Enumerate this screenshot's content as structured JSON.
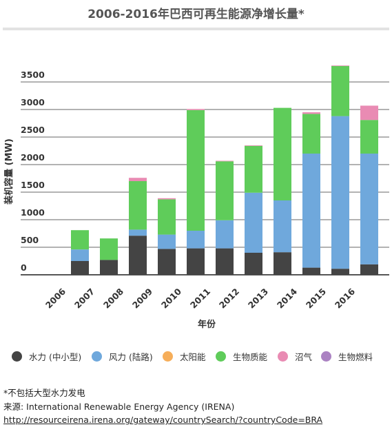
{
  "chart_data": {
    "type": "bar",
    "stacked": true,
    "title": "2006-2016年巴西可再生能源净增长量*",
    "xlabel": "年份",
    "ylabel": "装机容量 (MW)",
    "ylim": [
      0,
      3700
    ],
    "yticks": [
      0,
      500,
      1000,
      1500,
      2000,
      2500,
      3000,
      3500
    ],
    "categories": [
      "2006",
      "2007",
      "2008",
      "2009",
      "2010",
      "2011",
      "2012",
      "2013",
      "2014",
      "2015",
      "2016"
    ],
    "series": [
      {
        "name": "水力 (中小型)",
        "color": "#444444",
        "values": [
          250,
          270,
          710,
          470,
          480,
          480,
          400,
          410,
          130,
          110,
          190
        ]
      },
      {
        "name": "风力 (陆路)",
        "color": "#6fa8dc",
        "values": [
          210,
          0,
          110,
          260,
          320,
          510,
          1090,
          940,
          2070,
          2770,
          2010
        ]
      },
      {
        "name": "太阳能",
        "color": "#f6ae5a",
        "values": [
          0,
          0,
          0,
          0,
          0,
          0,
          0,
          0,
          0,
          0,
          0
        ]
      },
      {
        "name": "生物质能",
        "color": "#5fcc5a",
        "values": [
          350,
          390,
          880,
          640,
          2190,
          1070,
          850,
          1680,
          720,
          910,
          610
        ]
      },
      {
        "name": "沼气",
        "color": "#e98bb3",
        "values": [
          0,
          0,
          60,
          20,
          20,
          10,
          10,
          0,
          30,
          10,
          260
        ]
      },
      {
        "name": "生物燃料",
        "color": "#ab82c2",
        "values": [
          0,
          0,
          0,
          0,
          0,
          0,
          0,
          0,
          0,
          0,
          0
        ]
      }
    ]
  },
  "notes": {
    "footnote": "*不包括大型水力发电",
    "source": "来源: International Renewable Energy Agency (IRENA)",
    "url": "http://resourceirena.irena.org/gateway/countrySearch/?countryCode=BRA"
  }
}
